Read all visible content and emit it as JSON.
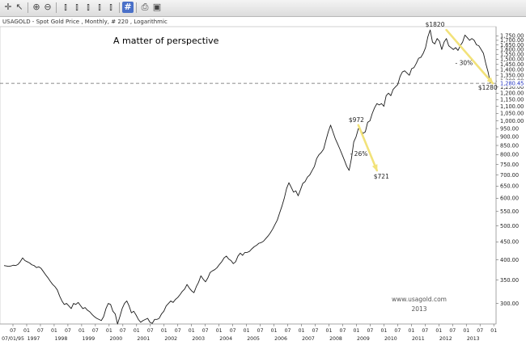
{
  "subtitle": "USAGOLD - Spot Gold Price , Monthly, # 220 , Logarithmic",
  "chart_data": {
    "type": "line",
    "title": "A matter of perspective",
    "watermark": [
      "www.usagold.com",
      "2013"
    ],
    "scale": "log",
    "ylim": [
      262,
      1860
    ],
    "grid": false,
    "current_value": "1,280.45",
    "current_line": 1280.45,
    "y_ticks": [
      "1,750.00",
      "1,700.00",
      "1,650.00",
      "1,600.00",
      "1,550.00",
      "1,500.00",
      "1,450.00",
      "1,400.00",
      "1,350.00",
      "1,300.00",
      "1,250.00",
      "1,200.00",
      "1,150.00",
      "1,100.00",
      "1,050.00",
      "1,000.00",
      "950.00",
      "900.00",
      "850.00",
      "800.00",
      "750.00",
      "700.00",
      "650.00",
      "600.00",
      "550.00",
      "500.00",
      "450.00",
      "400.00",
      "350.00",
      "300.00"
    ],
    "x_month_labels": [
      "07",
      "01",
      "07",
      "01",
      "07",
      "01",
      "07",
      "01",
      "07",
      "01",
      "07",
      "01",
      "07",
      "01",
      "07",
      "01",
      "07",
      "01",
      "07",
      "01",
      "07",
      "01",
      "07",
      "01",
      "07",
      "01",
      "07",
      "01",
      "07",
      "01",
      "07",
      "01",
      "07",
      "01",
      "07",
      "01"
    ],
    "x_year_labels": [
      "07/01/95",
      "1997",
      "1998",
      "1999",
      "2000",
      "2001",
      "2002",
      "2003",
      "2004",
      "2005",
      "2006",
      "2007",
      "2008",
      "2009",
      "2010",
      "2011",
      "2012",
      "2013"
    ],
    "series": [
      {
        "values": [
          385,
          384,
          383,
          384,
          386,
          385,
          388,
          395,
          405,
          398,
          395,
          392,
          387,
          385,
          380,
          382,
          378,
          370,
          362,
          355,
          347,
          340,
          335,
          328,
          315,
          305,
          298,
          300,
          295,
          290,
          300,
          298,
          302,
          296,
          290,
          292,
          287,
          284,
          279,
          275,
          272,
          270,
          268,
          275,
          290,
          300,
          298,
          285,
          280,
          262,
          275,
          290,
          300,
          305,
          295,
          282,
          285,
          278,
          270,
          265,
          268,
          270,
          272,
          265,
          263,
          270,
          270,
          272,
          280,
          285,
          295,
          300,
          305,
          302,
          308,
          312,
          318,
          325,
          330,
          340,
          332,
          326,
          322,
          335,
          345,
          360,
          352,
          346,
          355,
          368,
          372,
          375,
          380,
          388,
          395,
          405,
          410,
          402,
          398,
          390,
          395,
          410,
          418,
          412,
          420,
          420,
          423,
          430,
          436,
          440,
          446,
          448,
          452,
          460,
          468,
          478,
          490,
          505,
          520,
          545,
          570,
          600,
          640,
          665,
          645,
          625,
          630,
          610,
          635,
          662,
          670,
          690,
          700,
          720,
          740,
          780,
          800,
          812,
          830,
          880,
          930,
          972,
          930,
          890,
          860,
          830,
          800,
          770,
          740,
          721,
          780,
          870,
          900,
          950,
          940,
          920,
          930,
          990,
          1000,
          1050,
          1090,
          1120,
          1110,
          1120,
          1100,
          1180,
          1200,
          1180,
          1230,
          1250,
          1270,
          1340,
          1380,
          1390,
          1370,
          1350,
          1410,
          1420,
          1460,
          1510,
          1520,
          1560,
          1620,
          1740,
          1820,
          1680,
          1660,
          1720,
          1690,
          1600,
          1680,
          1720,
          1640,
          1620,
          1600,
          1620,
          1590,
          1640,
          1680,
          1760,
          1730,
          1700,
          1720,
          1700,
          1650,
          1640,
          1600,
          1560,
          1460,
          1380,
          1280
        ]
      }
    ],
    "annotations": [
      {
        "text": "$1820",
        "x": 191,
        "y": 1820
      },
      {
        "text": "- 30%",
        "x": 199,
        "y": 1460
      },
      {
        "text": "$1280",
        "x": 211,
        "y": 1280.45
      },
      {
        "text": "$972",
        "x": 153,
        "y": 972
      },
      {
        "text": "- 26%",
        "x": 155,
        "y": 805
      },
      {
        "text": "$721",
        "x": 161,
        "y": 721
      }
    ],
    "arrows": [
      {
        "from": [
          191,
          1820
        ],
        "to": [
          211,
          1280.45
        ]
      },
      {
        "from": [
          153,
          972
        ],
        "to": [
          161,
          721
        ]
      }
    ]
  }
}
